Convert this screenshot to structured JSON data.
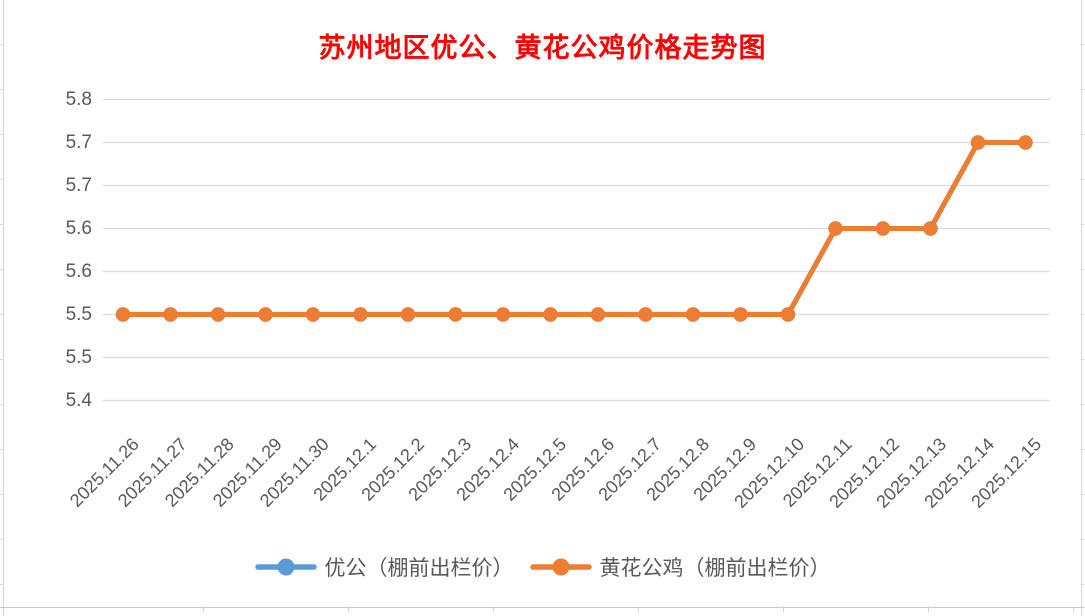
{
  "chart_data": {
    "type": "line",
    "title": "苏州地区优公、黄花公鸡价格走势图",
    "title_color": "#FF0000",
    "categories": [
      "2025.11.26",
      "2025.11.27",
      "2025.11.28",
      "2025.11.29",
      "2025.11.30",
      "2025.12.1",
      "2025.12.2",
      "2025.12.3",
      "2025.12.4",
      "2025.12.5",
      "2025.12.6",
      "2025.12.7",
      "2025.12.8",
      "2025.12.9",
      "2025.12.10",
      "2025.12.11",
      "2025.12.12",
      "2025.12.13",
      "2025.12.14",
      "2025.12.15"
    ],
    "series": [
      {
        "name": "优公（棚前出栏价）",
        "color": "#5B9BD5",
        "values": [
          5.5,
          5.5,
          5.5,
          5.5,
          5.5,
          5.5,
          5.5,
          5.5,
          5.5,
          5.5,
          5.5,
          5.5,
          5.5,
          5.5,
          5.5,
          5.6,
          5.6,
          5.6,
          5.7,
          5.7
        ]
      },
      {
        "name": "黄花公鸡（棚前出栏价）",
        "color": "#ED7D31",
        "values": [
          5.5,
          5.5,
          5.5,
          5.5,
          5.5,
          5.5,
          5.5,
          5.5,
          5.5,
          5.5,
          5.5,
          5.5,
          5.5,
          5.5,
          5.5,
          5.6,
          5.6,
          5.6,
          5.7,
          5.7
        ]
      }
    ],
    "y_axis": {
      "tick_labels": [
        "5.8",
        "5.7",
        "5.7",
        "5.6",
        "5.6",
        "5.5",
        "5.5",
        "5.4"
      ],
      "tick_values": [
        5.75,
        5.7,
        5.65,
        5.6,
        5.55,
        5.5,
        5.45,
        5.4
      ],
      "min": 5.4,
      "max": 5.75,
      "step": 0.05
    },
    "x_axis": {
      "label_rotation_deg": 45
    },
    "grid": "horizontal-only",
    "gridline_color": "#dcdcdc",
    "axis_text_color": "#595959",
    "legend_position": "bottom"
  }
}
